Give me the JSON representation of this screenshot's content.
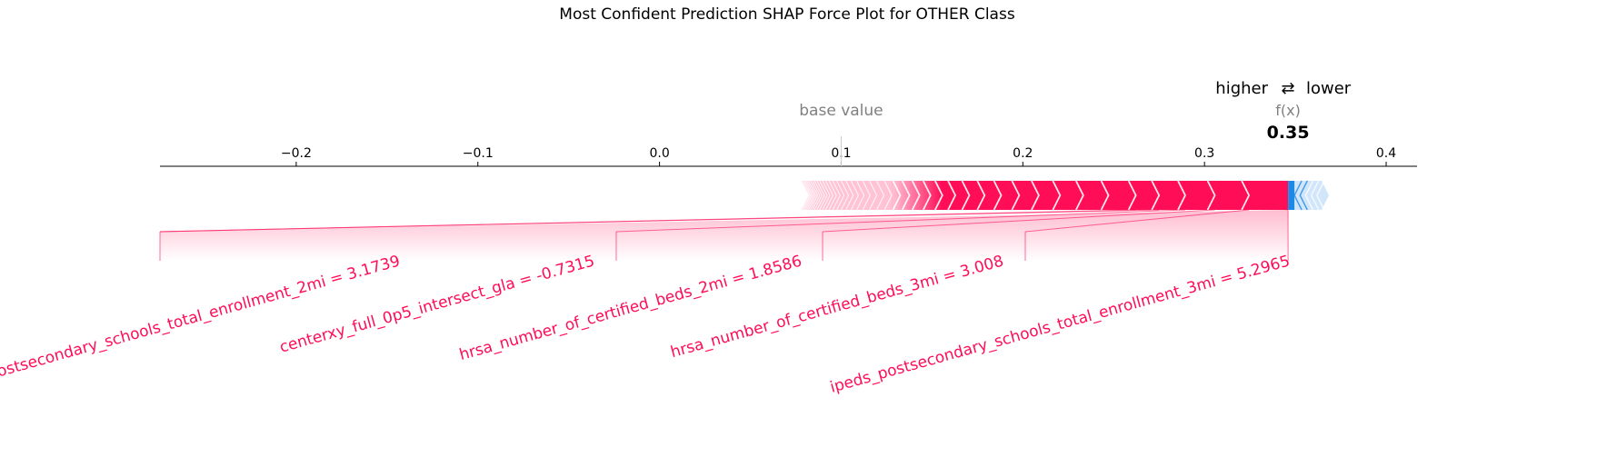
{
  "colors": {
    "positive": "#ff0d57",
    "negative": "#1e88e5",
    "positive_light": "#ffc3d5",
    "negative_light": "#d1e6fa",
    "axis": "#000000",
    "muted": "#808080"
  },
  "chart_data": {
    "type": "force",
    "title": "Most Confident Prediction SHAP Force Plot for OTHER Class",
    "xlim": [
      -0.275,
      0.417
    ],
    "ticks": [
      -0.2,
      -0.1,
      0.0,
      0.1,
      0.2,
      0.3,
      0.4
    ],
    "tick_labels": [
      "−0.2",
      "−0.1",
      "0.0",
      "0.1",
      "0.2",
      "0.3",
      "0.4"
    ],
    "base_value": 0.1,
    "base_value_label": "base value",
    "output_value": 0.346,
    "output_label": "f(x)",
    "output_value_text": "0.35",
    "legend": {
      "higher": "higher",
      "arrow": "⇄",
      "lower": "lower"
    },
    "labeled_features": [
      {
        "label": "ipeds_postsecondary_schools_total_enrollment_3mi = 5.2965",
        "shap": 0.0215
      },
      {
        "label": "hrsa_number_of_certified_beds_3mi = 3.008",
        "shap": 0.0188
      },
      {
        "label": "hrsa_number_of_certified_beds_2mi = 1.8586",
        "shap": 0.0163
      },
      {
        "label": "centerxy_full_0p5_intersect_gla = -0.7315",
        "shap": 0.0144
      },
      {
        "label": "ipeds_postsecondary_schools_total_enrollment_2mi = 3.1739",
        "shap": 0.0128
      }
    ],
    "positive_total": 0.268,
    "negative_total": 0.0225,
    "unlabeled_positive_count": 46,
    "unlabeled_negative_count": 5
  }
}
